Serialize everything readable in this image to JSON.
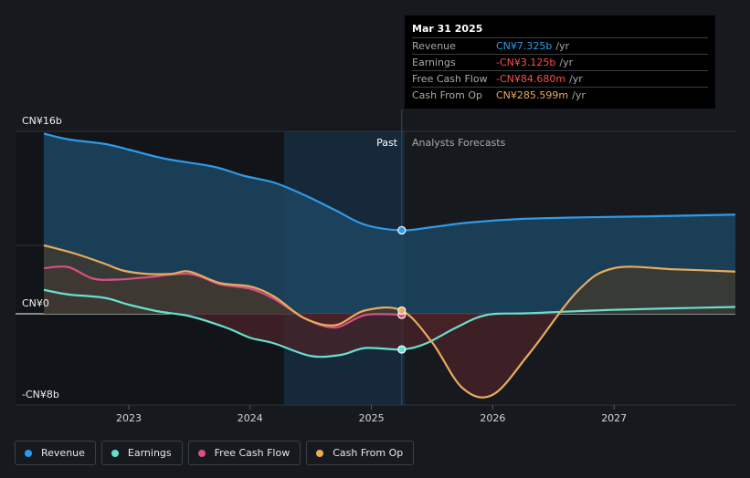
{
  "chart_data": {
    "type": "area",
    "y_axis": {
      "labels": [
        "CN¥16b",
        "CN¥0",
        "-CN¥8b"
      ],
      "ylim": [
        -8,
        16
      ],
      "unit": "CN¥ billions"
    },
    "x_axis": {
      "ticks": [
        2023,
        2024,
        2025,
        2026,
        2027
      ],
      "xlim": [
        2022.3,
        2028.0
      ]
    },
    "past_label": "Past",
    "forecast_label": "Analysts Forecasts",
    "divider_x": 2025.25,
    "series": [
      {
        "name": "Revenue",
        "color": "#2f9ae8",
        "fill": "#1c4561",
        "points": [
          [
            2022.3,
            15.8
          ],
          [
            2022.5,
            15.3
          ],
          [
            2022.8,
            14.9
          ],
          [
            2023.0,
            14.4
          ],
          [
            2023.3,
            13.6
          ],
          [
            2023.7,
            12.9
          ],
          [
            2023.95,
            12.1
          ],
          [
            2024.2,
            11.5
          ],
          [
            2024.45,
            10.4
          ],
          [
            2024.7,
            9.1
          ],
          [
            2024.95,
            7.8
          ],
          [
            2025.25,
            7.325
          ],
          [
            2025.5,
            7.6
          ],
          [
            2025.8,
            8.0
          ],
          [
            2026.2,
            8.3
          ],
          [
            2026.7,
            8.45
          ],
          [
            2027.3,
            8.55
          ],
          [
            2028.0,
            8.7
          ]
        ]
      },
      {
        "name": "Earnings",
        "color": "#68e0cf",
        "fill": "#1e3a3c",
        "points": [
          [
            2022.3,
            2.1
          ],
          [
            2022.5,
            1.7
          ],
          [
            2022.8,
            1.4
          ],
          [
            2023.0,
            0.8
          ],
          [
            2023.25,
            0.2
          ],
          [
            2023.5,
            -0.2
          ],
          [
            2023.8,
            -1.2
          ],
          [
            2024.0,
            -2.1
          ],
          [
            2024.2,
            -2.6
          ],
          [
            2024.5,
            -3.7
          ],
          [
            2024.75,
            -3.6
          ],
          [
            2024.95,
            -3.0
          ],
          [
            2025.25,
            -3.125
          ],
          [
            2025.45,
            -2.6
          ],
          [
            2025.7,
            -1.2
          ],
          [
            2025.95,
            -0.1
          ],
          [
            2026.3,
            0.05
          ],
          [
            2027.0,
            0.35
          ],
          [
            2028.0,
            0.6
          ]
        ]
      },
      {
        "name": "Free Cash Flow",
        "color": "#d94f86",
        "fill": "#4a2b39",
        "points": [
          [
            2022.3,
            4.0
          ],
          [
            2022.5,
            4.1
          ],
          [
            2022.7,
            3.1
          ],
          [
            2022.9,
            3.0
          ],
          [
            2023.15,
            3.2
          ],
          [
            2023.5,
            3.5
          ],
          [
            2023.75,
            2.6
          ],
          [
            2024.0,
            2.2
          ],
          [
            2024.2,
            1.3
          ],
          [
            2024.45,
            -0.4
          ],
          [
            2024.7,
            -1.2
          ],
          [
            2024.95,
            -0.1
          ],
          [
            2025.25,
            -0.085
          ]
        ]
      },
      {
        "name": "Cash From Op",
        "color": "#e9ab5e",
        "fill": "#3d3a30",
        "points": [
          [
            2022.3,
            6.0
          ],
          [
            2022.55,
            5.3
          ],
          [
            2022.8,
            4.4
          ],
          [
            2022.95,
            3.8
          ],
          [
            2023.15,
            3.5
          ],
          [
            2023.35,
            3.5
          ],
          [
            2023.5,
            3.7
          ],
          [
            2023.75,
            2.7
          ],
          [
            2024.0,
            2.4
          ],
          [
            2024.2,
            1.5
          ],
          [
            2024.45,
            -0.4
          ],
          [
            2024.7,
            -1.0
          ],
          [
            2024.95,
            0.3
          ],
          [
            2025.25,
            0.286
          ],
          [
            2025.5,
            -2.5
          ],
          [
            2025.75,
            -6.5
          ],
          [
            2026.0,
            -7.1
          ],
          [
            2026.3,
            -3.5
          ],
          [
            2026.7,
            2.0
          ],
          [
            2027.0,
            4.0
          ],
          [
            2027.5,
            3.9
          ],
          [
            2028.0,
            3.7
          ]
        ]
      }
    ],
    "highlight": {
      "x": 2025.25,
      "label": "Mar 31 2025"
    }
  },
  "tooltip": {
    "date": "Mar 31 2025",
    "rows": [
      {
        "name": "Revenue",
        "value": "CN¥7.325b",
        "unit": "/yr",
        "color": "#2f9ae8"
      },
      {
        "name": "Earnings",
        "value": "-CN¥3.125b",
        "unit": "/yr",
        "color": "#ff4c4c"
      },
      {
        "name": "Free Cash Flow",
        "value": "-CN¥84.680m",
        "unit": "/yr",
        "color": "#ff4c4c"
      },
      {
        "name": "Cash From Op",
        "value": "CN¥285.599m",
        "unit": "/yr",
        "color": "#e9ab5e"
      }
    ]
  },
  "legend": [
    {
      "label": "Revenue",
      "color": "#2f9ae8"
    },
    {
      "label": "Earnings",
      "color": "#68e0cf"
    },
    {
      "label": "Free Cash Flow",
      "color": "#d94f86"
    },
    {
      "label": "Cash From Op",
      "color": "#e9ab5e"
    }
  ]
}
